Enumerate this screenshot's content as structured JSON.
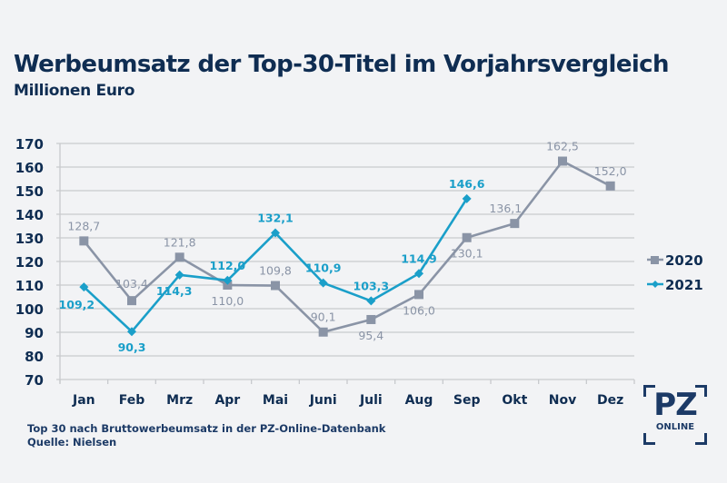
{
  "header": {
    "title": "Werbeumsatz der Top-30-Titel im Vorjahrsvergleich",
    "subtitle": "Millionen Euro"
  },
  "footer": {
    "note": "Top 30 nach Bruttowerbeumsatz in der PZ-Online-Datenbank",
    "source": "Quelle: Nielsen"
  },
  "logo": {
    "main": "PZ",
    "sub": "ONLINE"
  },
  "colors": {
    "series_2020": "#8a94a6",
    "series_2021": "#1a9fc9",
    "text_dark": "#0f2d52",
    "grid": "#c8cacd"
  },
  "chart_data": {
    "type": "line",
    "title": "Werbeumsatz der Top-30-Titel im Vorjahrsvergleich",
    "subtitle": "Millionen Euro",
    "xlabel": "",
    "ylabel": "Millionen Euro",
    "categories": [
      "Jan",
      "Feb",
      "Mrz",
      "Apr",
      "Mai",
      "Juni",
      "Juli",
      "Aug",
      "Sep",
      "Okt",
      "Nov",
      "Dez"
    ],
    "ylim": [
      70,
      170
    ],
    "yticks": [
      70,
      80,
      90,
      100,
      110,
      120,
      130,
      140,
      150,
      160,
      170
    ],
    "grid": true,
    "legend": "right",
    "series": [
      {
        "name": "2020",
        "marker": "square",
        "values": [
          128.7,
          103.4,
          121.8,
          110.0,
          109.8,
          90.1,
          95.4,
          106.0,
          130.1,
          136.1,
          162.5,
          152.0
        ],
        "labels": [
          "128,7",
          "103,4",
          "121,8",
          "110,0",
          "109,8",
          "90,1",
          "95,4",
          "106,0",
          "130,1",
          "136,1",
          "162,5",
          "152,0"
        ]
      },
      {
        "name": "2021",
        "marker": "diamond",
        "values": [
          109.2,
          90.3,
          114.3,
          112.0,
          132.1,
          110.9,
          103.3,
          114.9,
          146.6,
          null,
          null,
          null
        ],
        "labels": [
          "109,2",
          "90,3",
          "114,3",
          "112,0",
          "132,1",
          "110,9",
          "103,3",
          "114,9",
          "146,6",
          null,
          null,
          null
        ]
      }
    ]
  }
}
